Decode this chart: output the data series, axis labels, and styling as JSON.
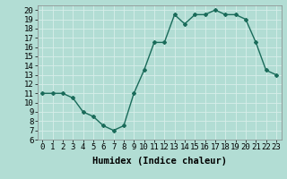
{
  "x": [
    0,
    1,
    2,
    3,
    4,
    5,
    6,
    7,
    8,
    9,
    10,
    11,
    12,
    13,
    14,
    15,
    16,
    17,
    18,
    19,
    20,
    21,
    22,
    23
  ],
  "y": [
    11,
    11,
    11,
    10.5,
    9,
    8.5,
    7.5,
    7,
    7.5,
    11,
    13.5,
    16.5,
    16.5,
    19.5,
    18.5,
    19.5,
    19.5,
    20,
    19.5,
    19.5,
    19,
    16.5,
    13.5,
    13
  ],
  "line_color": "#1a6b5a",
  "marker": "D",
  "marker_size": 2,
  "bg_color": "#b2ddd4",
  "grid_color": "#d8eeea",
  "xlabel": "Humidex (Indice chaleur)",
  "xlim": [
    -0.5,
    23.5
  ],
  "ylim": [
    6,
    20.5
  ],
  "yticks": [
    6,
    7,
    8,
    9,
    10,
    11,
    12,
    13,
    14,
    15,
    16,
    17,
    18,
    19,
    20
  ],
  "xticks": [
    0,
    1,
    2,
    3,
    4,
    5,
    6,
    7,
    8,
    9,
    10,
    11,
    12,
    13,
    14,
    15,
    16,
    17,
    18,
    19,
    20,
    21,
    22,
    23
  ],
  "xlabel_fontsize": 7.5,
  "tick_fontsize": 6.5
}
